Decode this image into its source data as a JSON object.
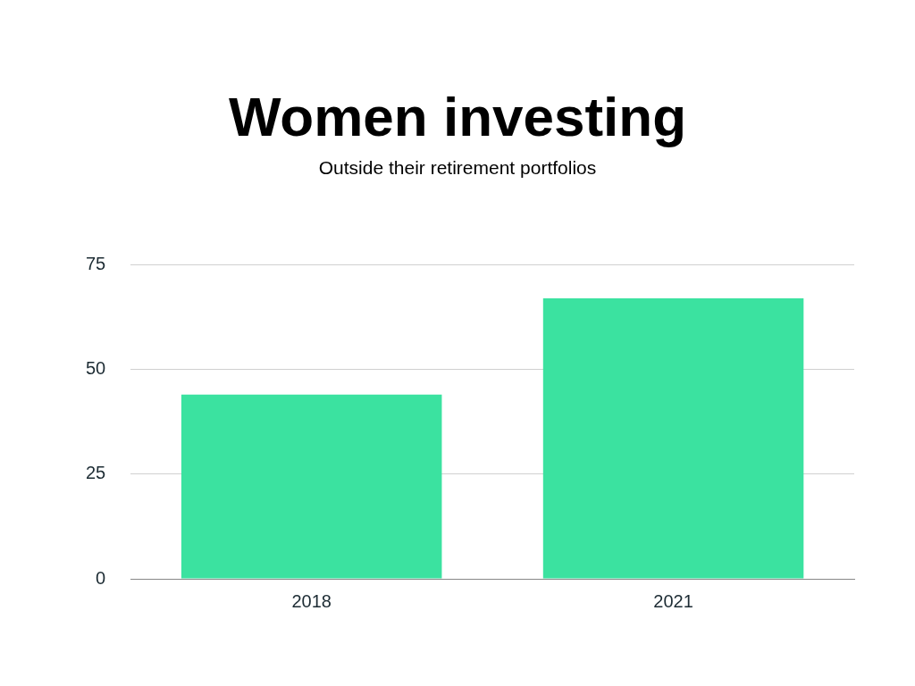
{
  "chart_data": {
    "type": "bar",
    "title": "Women investing",
    "subtitle": "Outside their retirement portfolios",
    "categories": [
      "2018",
      "2021"
    ],
    "series": [
      {
        "color": "#3be2a0",
        "values": [
          44,
          67
        ]
      }
    ],
    "ylim": [
      0,
      75
    ],
    "yticks": [
      0,
      25,
      50,
      75
    ],
    "grid": "y",
    "legend": false
  }
}
